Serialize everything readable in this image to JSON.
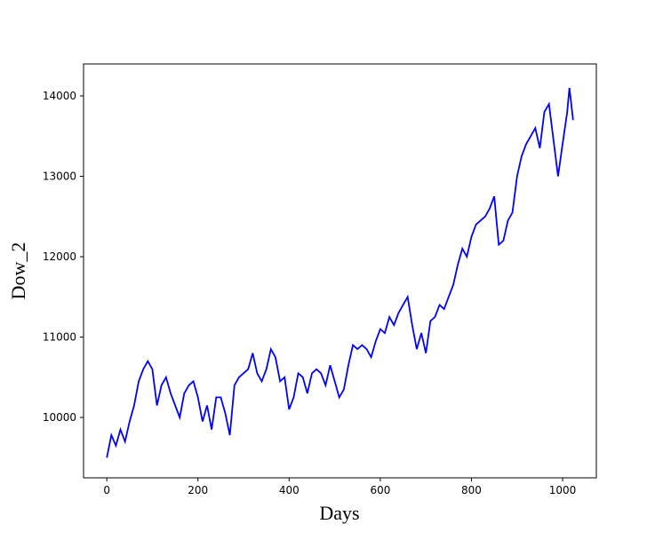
{
  "chart_data": {
    "type": "line",
    "x_label": "Days",
    "y_label": "Dow_2",
    "x": [
      0,
      10,
      20,
      30,
      40,
      50,
      60,
      70,
      80,
      90,
      100,
      110,
      120,
      130,
      140,
      150,
      160,
      170,
      180,
      190,
      200,
      210,
      220,
      230,
      240,
      250,
      260,
      270,
      280,
      290,
      300,
      310,
      320,
      330,
      340,
      350,
      360,
      370,
      380,
      390,
      400,
      410,
      420,
      430,
      440,
      450,
      460,
      470,
      480,
      490,
      500,
      510,
      520,
      530,
      540,
      550,
      560,
      570,
      580,
      590,
      600,
      610,
      620,
      630,
      640,
      650,
      660,
      670,
      680,
      690,
      700,
      710,
      720,
      730,
      740,
      750,
      760,
      770,
      780,
      790,
      800,
      810,
      820,
      830,
      840,
      850,
      860,
      870,
      880,
      890,
      900,
      910,
      920,
      930,
      940,
      950,
      960,
      970,
      980,
      990,
      1000,
      1010,
      1015,
      1020,
      1023
    ],
    "series": [
      {
        "name": "Dow_2",
        "color": "#0000ff",
        "values": [
          9500,
          9780,
          9650,
          9850,
          9700,
          9950,
          10150,
          10450,
          10600,
          10700,
          10600,
          10150,
          10400,
          10500,
          10300,
          10150,
          10000,
          10300,
          10400,
          10450,
          10250,
          9950,
          10150,
          9850,
          10250,
          10250,
          10050,
          9780,
          10400,
          10500,
          10550,
          10600,
          10800,
          10550,
          10450,
          10600,
          10850,
          10750,
          10450,
          10500,
          10100,
          10250,
          10550,
          10500,
          10300,
          10550,
          10600,
          10550,
          10400,
          10650,
          10450,
          10250,
          10350,
          10650,
          10900,
          10850,
          10900,
          10850,
          10750,
          10950,
          11100,
          11050,
          11250,
          11150,
          11300,
          11400,
          11500,
          11150,
          10850,
          11050,
          10800,
          11200,
          11250,
          11400,
          11350,
          11500,
          11650,
          11900,
          12100,
          12000,
          12250,
          12400,
          12450,
          12500,
          12600,
          12750,
          12150,
          12200,
          12450,
          12550,
          13000,
          13250,
          13400,
          13500,
          13600,
          13350,
          13800,
          13900,
          13450,
          13000,
          13400,
          13800,
          14100,
          13850,
          13700
        ]
      }
    ],
    "xlim": [
      -51,
      1074
    ],
    "ylim": [
      9249,
      14398
    ],
    "xticks": [
      0,
      200,
      400,
      600,
      800,
      1000
    ],
    "yticks": [
      10000,
      11000,
      12000,
      13000,
      14000
    ]
  }
}
